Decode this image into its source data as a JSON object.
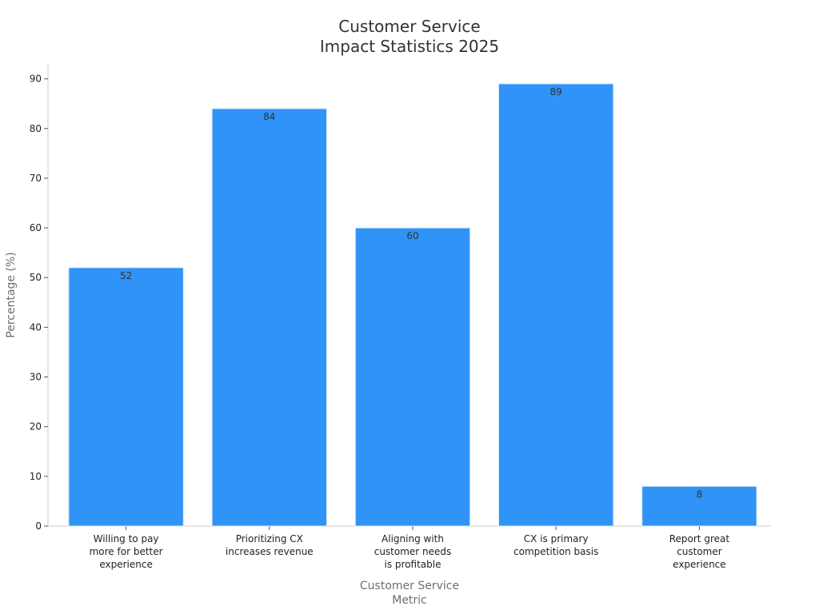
{
  "chart_data": {
    "type": "bar",
    "title": [
      "Customer Service",
      "Impact Statistics 2025"
    ],
    "xlabel": [
      "Customer Service",
      "Metric"
    ],
    "ylabel": "Percentage (%)",
    "ylim": [
      0,
      93
    ],
    "yticks": [
      0,
      10,
      20,
      30,
      40,
      50,
      60,
      70,
      80,
      90
    ],
    "grid": false,
    "categories": [
      [
        "Willing to pay",
        "more for better",
        "experience"
      ],
      [
        "Prioritizing CX",
        "increases revenue"
      ],
      [
        "Aligning with",
        "customer needs",
        "is profitable"
      ],
      [
        "CX is primary",
        "competition basis"
      ],
      [
        "Report great",
        "customer",
        "experience"
      ]
    ],
    "values": [
      52,
      84,
      60,
      89,
      8
    ],
    "data_labels": [
      "52",
      "84",
      "60",
      "89",
      "8"
    ],
    "colors": {
      "bar": "#2f93f7"
    }
  }
}
